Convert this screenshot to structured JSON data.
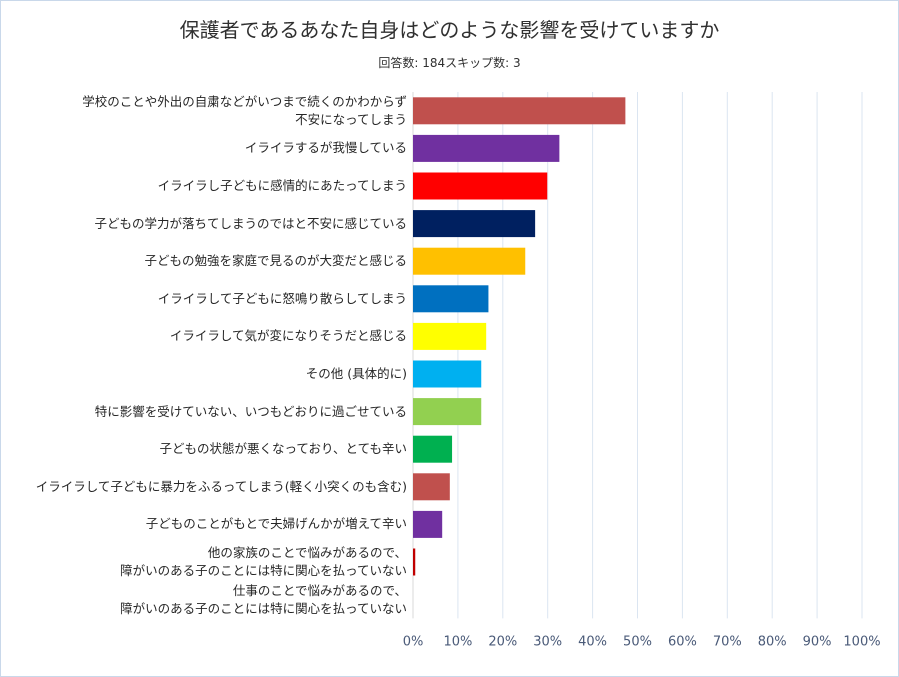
{
  "chart_data": {
    "type": "bar",
    "orientation": "horizontal",
    "title": "保護者であるあなた自身はどのような影響を受けていますか",
    "subtitle": "回答数: 184スキップ数: 3",
    "categories": [
      "学校のことや外出の自粛などがいつまで続くのかわからず\n不安になってしまう",
      "イライラするが我慢している",
      "イライラし子どもに感情的にあたってしまう",
      "子どもの学力が落ちてしまうのではと不安に感じている",
      "子どもの勉強を家庭で見るのが大変だと感じる",
      "イライラして子どもに怒鳴り散らしてしまう",
      "イライラして気が変になりそうだと感じる",
      "その他 (具体的に)",
      "特に影響を受けていない、いつもどおりに過ごせている",
      "子どもの状態が悪くなっており、とても辛い",
      "イライラして子どもに暴力をふるってしまう(軽く小突くのも含む)",
      "子どものことがもとで夫婦げんかが増えて辛い",
      "他の家族のことで悩みがあるので、\n障がいのある子のことには特に関心を払っていない",
      "仕事のことで悩みがあるので、\n障がいのある子のことには特に関心を払っていない"
    ],
    "values": [
      47.3,
      32.6,
      29.9,
      27.2,
      25.0,
      16.8,
      16.3,
      15.2,
      15.2,
      8.7,
      8.2,
      6.5,
      0.5,
      0.0
    ],
    "colors": [
      "#c0504d",
      "#7030a0",
      "#ff0000",
      "#002060",
      "#ffc000",
      "#0070c0",
      "#ffff00",
      "#00b0f0",
      "#92d050",
      "#00b050",
      "#c0504d",
      "#7030a0",
      "#c00000",
      "#8db3e2"
    ],
    "xlim": [
      0,
      100
    ],
    "xticks": [
      "0%",
      "10%",
      "20%",
      "30%",
      "40%",
      "50%",
      "60%",
      "70%",
      "80%",
      "90%",
      "100%"
    ],
    "grid": true,
    "legend": "none"
  }
}
